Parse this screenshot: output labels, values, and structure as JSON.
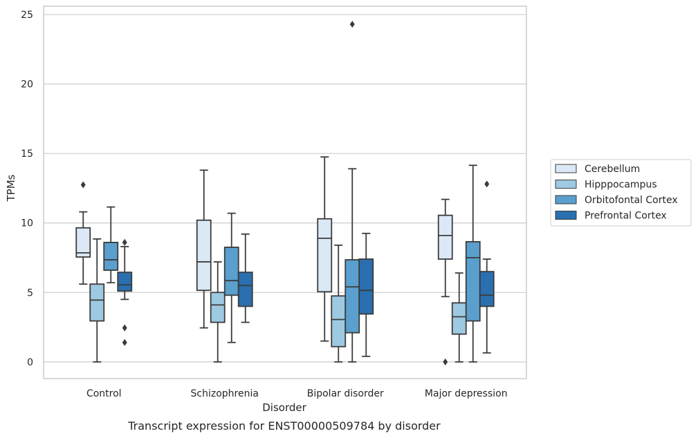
{
  "caption": "Transcript expression for ENST00000509784 by disorder",
  "chart_data": {
    "type": "box",
    "xlabel": "Disorder",
    "ylabel": "TPMs",
    "ylim": [
      -1.2,
      25.6
    ],
    "yticks": [
      0,
      5,
      10,
      15,
      20,
      25
    ],
    "grid": "horizontal",
    "legend_position": "right",
    "categories": [
      "Control",
      "Schizophrenia",
      "Bipolar disorder",
      "Major depression"
    ],
    "series": [
      {
        "name": "Cerebellum",
        "color": "#dbe9f6",
        "boxes": [
          {
            "whisker_low": 5.6,
            "q1": 7.55,
            "median": 7.85,
            "q3": 9.65,
            "whisker_high": 10.8,
            "outliers": [
              12.75
            ]
          },
          {
            "whisker_low": 2.45,
            "q1": 5.15,
            "median": 7.2,
            "q3": 10.2,
            "whisker_high": 13.8,
            "outliers": []
          },
          {
            "whisker_low": 1.5,
            "q1": 5.05,
            "median": 8.9,
            "q3": 10.3,
            "whisker_high": 14.75,
            "outliers": []
          },
          {
            "whisker_low": 4.7,
            "q1": 7.4,
            "median": 9.1,
            "q3": 10.55,
            "whisker_high": 11.7,
            "outliers": [
              0.0
            ]
          }
        ]
      },
      {
        "name": "Hipppocampus",
        "color": "#9ecae1",
        "boxes": [
          {
            "whisker_low": 0.0,
            "q1": 2.95,
            "median": 4.45,
            "q3": 5.6,
            "whisker_high": 8.85,
            "outliers": []
          },
          {
            "whisker_low": 0.0,
            "q1": 2.85,
            "median": 4.1,
            "q3": 5.0,
            "whisker_high": 7.2,
            "outliers": []
          },
          {
            "whisker_low": 0.0,
            "q1": 1.1,
            "median": 3.05,
            "q3": 4.75,
            "whisker_high": 8.4,
            "outliers": []
          },
          {
            "whisker_low": 0.0,
            "q1": 2.0,
            "median": 3.25,
            "q3": 4.25,
            "whisker_high": 6.4,
            "outliers": []
          }
        ]
      },
      {
        "name": "Orbitofontal Cortex",
        "color": "#5a9fcd",
        "boxes": [
          {
            "whisker_low": 5.7,
            "q1": 6.6,
            "median": 7.35,
            "q3": 8.6,
            "whisker_high": 11.15,
            "outliers": []
          },
          {
            "whisker_low": 1.4,
            "q1": 4.8,
            "median": 5.85,
            "q3": 8.25,
            "whisker_high": 10.7,
            "outliers": []
          },
          {
            "whisker_low": 0.0,
            "q1": 2.1,
            "median": 5.4,
            "q3": 7.35,
            "whisker_high": 13.9,
            "outliers": [
              24.3
            ]
          },
          {
            "whisker_low": 0.0,
            "q1": 2.95,
            "median": 7.5,
            "q3": 8.65,
            "whisker_high": 14.15,
            "outliers": []
          }
        ]
      },
      {
        "name": "Prefrontal Cortex",
        "color": "#2a6fb0",
        "boxes": [
          {
            "whisker_low": 4.5,
            "q1": 5.1,
            "median": 5.55,
            "q3": 6.45,
            "whisker_high": 8.3,
            "outliers": [
              8.6,
              2.45,
              1.4
            ]
          },
          {
            "whisker_low": 2.85,
            "q1": 4.0,
            "median": 5.5,
            "q3": 6.45,
            "whisker_high": 9.2,
            "outliers": []
          },
          {
            "whisker_low": 0.4,
            "q1": 3.45,
            "median": 5.15,
            "q3": 7.4,
            "whisker_high": 9.25,
            "outliers": []
          },
          {
            "whisker_low": 0.65,
            "q1": 4.0,
            "median": 4.8,
            "q3": 6.5,
            "whisker_high": 7.4,
            "outliers": [
              12.8
            ]
          }
        ]
      }
    ]
  }
}
